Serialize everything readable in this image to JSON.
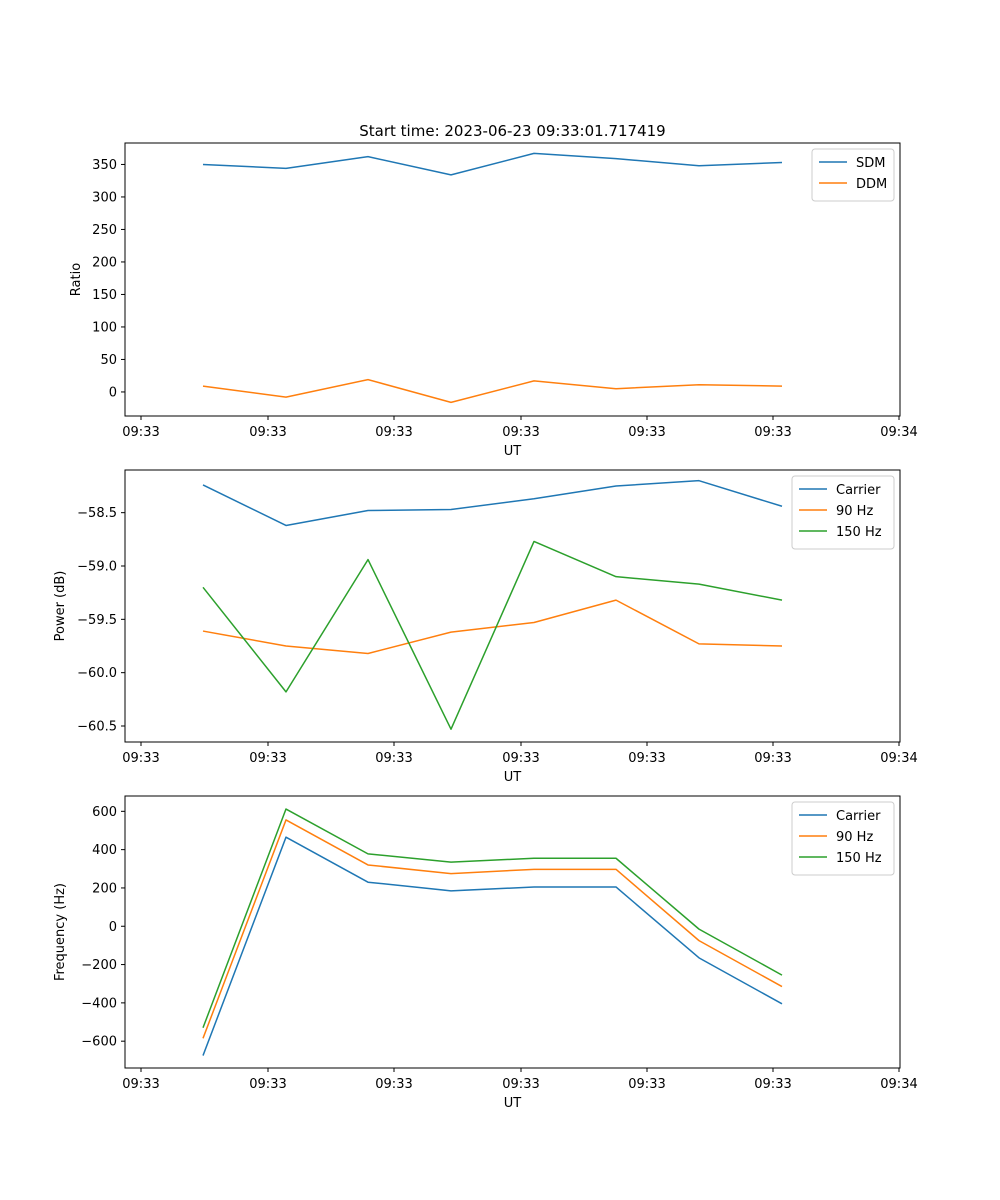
{
  "figure_title": "Start time: 2023-06-23 09:33:01.717419",
  "colors": {
    "blue": "#1f77b4",
    "orange": "#ff7f0e",
    "green": "#2ca02c"
  },
  "chart_data": [
    {
      "type": "line",
      "title": "Start time: 2023-06-23 09:33:01.717419",
      "xlabel": "UT",
      "ylabel": "Ratio",
      "x_tick_labels": [
        "09:33",
        "09:33",
        "09:33",
        "09:33",
        "09:33",
        "09:33",
        "09:34"
      ],
      "x": [
        1,
        2,
        3,
        4,
        5,
        6,
        7,
        8
      ],
      "y_ticks": [
        0,
        50,
        100,
        150,
        200,
        250,
        300,
        350
      ],
      "ylim": [
        -37,
        383
      ],
      "legend_position": "upper right",
      "series": [
        {
          "name": "SDM",
          "color": "#1f77b4",
          "values": [
            350,
            344,
            362,
            334,
            367,
            359,
            348,
            353
          ]
        },
        {
          "name": "DDM",
          "color": "#ff7f0e",
          "values": [
            9,
            -8,
            19,
            -16,
            17,
            5,
            11,
            9
          ]
        }
      ]
    },
    {
      "type": "line",
      "title": "",
      "xlabel": "UT",
      "ylabel": "Power (dB)",
      "x_tick_labels": [
        "09:33",
        "09:33",
        "09:33",
        "09:33",
        "09:33",
        "09:33",
        "09:34"
      ],
      "x": [
        1,
        2,
        3,
        4,
        5,
        6,
        7,
        8
      ],
      "y_ticks": [
        -60.5,
        -60.0,
        -59.5,
        -59.0,
        -58.5
      ],
      "y_tick_labels": [
        "−60.5",
        "−60.0",
        "−59.5",
        "−59.0",
        "−58.5"
      ],
      "ylim": [
        -60.65,
        -58.1
      ],
      "legend_position": "upper right",
      "series": [
        {
          "name": "Carrier",
          "color": "#1f77b4",
          "values": [
            -58.24,
            -58.62,
            -58.48,
            -58.47,
            -58.37,
            -58.25,
            -58.2,
            -58.44
          ]
        },
        {
          "name": "90 Hz",
          "color": "#ff7f0e",
          "values": [
            -59.61,
            -59.75,
            -59.82,
            -59.62,
            -59.53,
            -59.32,
            -59.73,
            -59.75
          ]
        },
        {
          "name": "150 Hz",
          "color": "#2ca02c",
          "values": [
            -59.2,
            -60.18,
            -58.94,
            -60.53,
            -58.77,
            -59.1,
            -59.17,
            -59.32
          ]
        }
      ]
    },
    {
      "type": "line",
      "title": "",
      "xlabel": "UT",
      "ylabel": "Frequency (Hz)",
      "x_tick_labels": [
        "09:33",
        "09:33",
        "09:33",
        "09:33",
        "09:33",
        "09:33",
        "09:34"
      ],
      "x": [
        1,
        2,
        3,
        4,
        5,
        6,
        7,
        8
      ],
      "y_ticks": [
        -600,
        -400,
        -200,
        0,
        200,
        400,
        600
      ],
      "y_tick_labels": [
        "−600",
        "−400",
        "−200",
        "0",
        "200",
        "400",
        "600"
      ],
      "ylim": [
        -740,
        680
      ],
      "legend_position": "upper right",
      "series": [
        {
          "name": "Carrier",
          "color": "#1f77b4",
          "values": [
            -675,
            465,
            230,
            185,
            205,
            205,
            -165,
            -405
          ]
        },
        {
          "name": "90 Hz",
          "color": "#ff7f0e",
          "values": [
            -585,
            555,
            320,
            275,
            297,
            297,
            -75,
            -315
          ]
        },
        {
          "name": "150 Hz",
          "color": "#2ca02c",
          "values": [
            -530,
            612,
            378,
            335,
            355,
            355,
            -15,
            -255
          ]
        }
      ]
    }
  ]
}
